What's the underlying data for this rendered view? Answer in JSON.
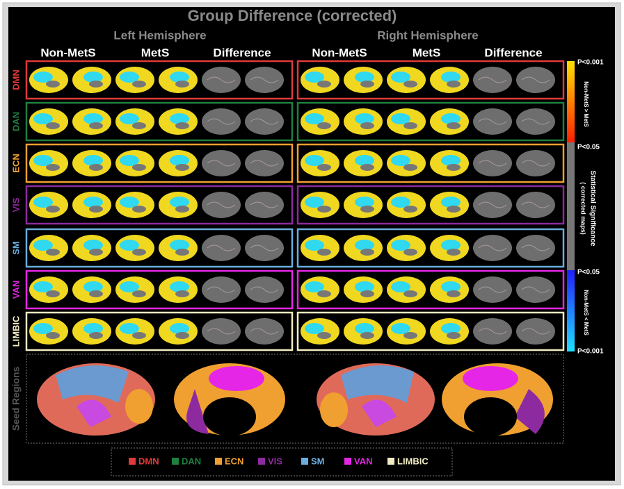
{
  "title": "Group Difference (corrected)",
  "hemispheres": [
    {
      "label": "Left Hemisphere",
      "columns": [
        "Non-MetS",
        "MetS",
        "Difference"
      ]
    },
    {
      "label": "Right Hemisphere",
      "columns": [
        "Non-MetS",
        "MetS",
        "Difference"
      ]
    }
  ],
  "networks": [
    {
      "name": "DMN",
      "color": "#e03a3a"
    },
    {
      "name": "DAN",
      "color": "#1f8040"
    },
    {
      "name": "ECN",
      "color": "#f0a030"
    },
    {
      "name": "VIS",
      "color": "#8e2aa0"
    },
    {
      "name": "SM",
      "color": "#6aaee0"
    },
    {
      "name": "VAN",
      "color": "#e626e6"
    },
    {
      "name": "LIMBIC",
      "color": "#f2ecc4"
    }
  ],
  "colorbar": {
    "top": "P<0.001",
    "upper_note": "Non-MetS > MetS",
    "mid_top": "P<0.05",
    "mid_note": "Statistical Significance",
    "mid_sub": "( corrected maps)",
    "mid_bottom": "P<0.05",
    "lower_note": "Non-MetS < MetS",
    "bottom": "P<0.001"
  },
  "seed_label": "Seed Regions"
}
